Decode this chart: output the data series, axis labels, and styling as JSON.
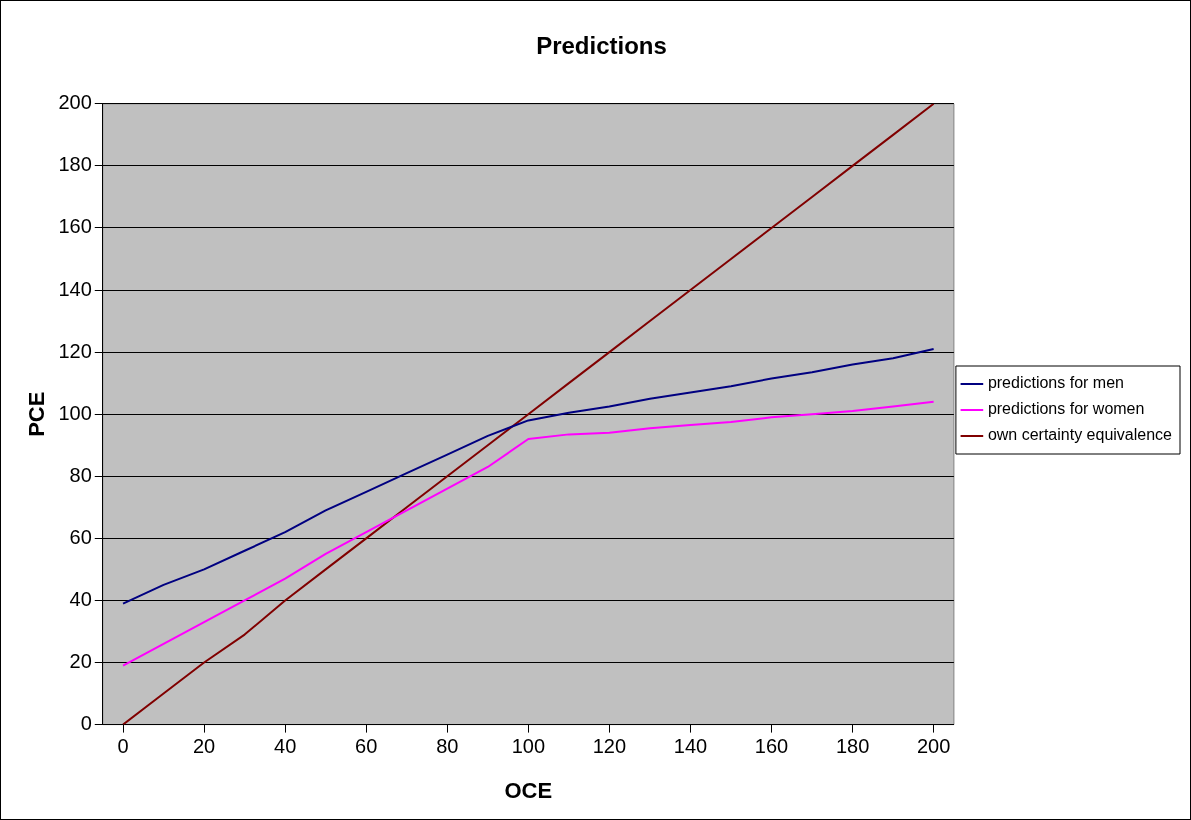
{
  "chart_data": {
    "type": "line",
    "title": "Predictions",
    "xlabel": "OCE",
    "ylabel": "PCE",
    "x": [
      0,
      10,
      20,
      30,
      40,
      50,
      60,
      70,
      80,
      90,
      100,
      110,
      120,
      130,
      140,
      150,
      160,
      170,
      180,
      190,
      200
    ],
    "xlim": [
      -5,
      205
    ],
    "xticks": [
      0,
      20,
      40,
      60,
      80,
      100,
      120,
      140,
      160,
      180,
      200
    ],
    "ylim": [
      0,
      200
    ],
    "yticks": [
      0,
      20,
      40,
      60,
      80,
      100,
      120,
      140,
      160,
      180,
      200
    ],
    "grid": "y",
    "legend": "right",
    "marker": "none",
    "line_style": "solid",
    "series": [
      {
        "name": "predictions for men",
        "color": "#000080",
        "values": [
          39,
          45,
          50,
          56,
          62,
          69,
          75,
          81,
          87,
          93,
          98,
          100.5,
          102.5,
          105,
          107,
          109,
          111.5,
          113.5,
          116,
          118,
          121
        ]
      },
      {
        "name": "predictions for women",
        "color": "#ff00ff",
        "values": [
          19,
          26,
          33,
          40,
          47,
          55,
          62,
          69,
          76,
          83,
          92,
          93.5,
          94,
          95.5,
          96.5,
          97.5,
          99,
          100,
          101,
          102.5,
          104
        ]
      },
      {
        "name": "own certainty equivalence",
        "color": "#800000",
        "values": [
          0,
          10,
          20,
          29,
          40,
          50,
          60,
          70,
          80,
          90,
          100,
          110,
          120,
          130,
          140,
          150,
          160,
          170,
          180,
          190,
          200
        ]
      }
    ]
  }
}
